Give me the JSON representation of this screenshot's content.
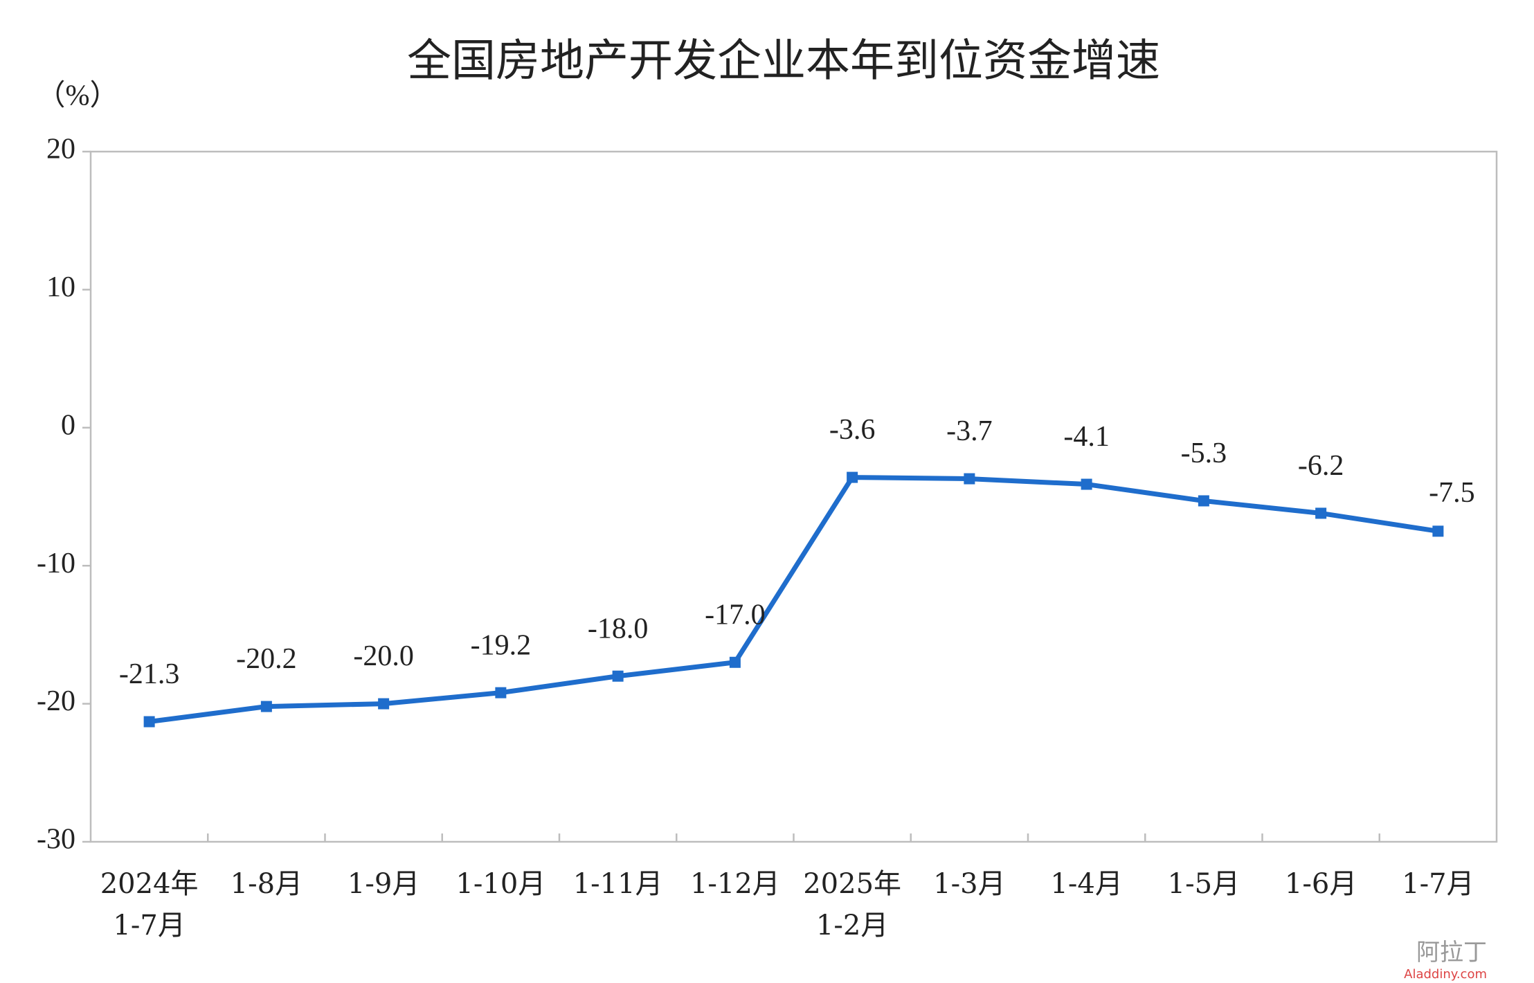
{
  "chart_data": {
    "type": "line",
    "title": "全国房地产开发企业本年到位资金增速",
    "y_label": "（%）",
    "categories": [
      [
        "2024年",
        "1-7月"
      ],
      [
        "1-8月"
      ],
      [
        "1-9月"
      ],
      [
        "1-10月"
      ],
      [
        "1-11月"
      ],
      [
        "1-12月"
      ],
      [
        "2025年",
        "1-2月"
      ],
      [
        "1-3月"
      ],
      [
        "1-4月"
      ],
      [
        "1-5月"
      ],
      [
        "1-6月"
      ],
      [
        "1-7月"
      ]
    ],
    "values": [
      -21.3,
      -20.2,
      -20.0,
      -19.2,
      -18.0,
      -17.0,
      -3.6,
      -3.7,
      -4.1,
      -5.3,
      -6.2,
      -7.5
    ],
    "value_labels": [
      "-21.3",
      "-20.2",
      "-20.0",
      "-19.2",
      "-18.0",
      "-17.0",
      "-3.6",
      "-3.7",
      "-4.1",
      "-5.3",
      "-6.2",
      "-7.5"
    ],
    "color": "#1f6dcc",
    "ylim": [
      -30,
      20
    ],
    "yticks": [
      -30,
      -20,
      -10,
      0,
      10,
      20
    ],
    "grid": false,
    "watermark": {
      "text": "阿拉丁",
      "url": "Aladdiny.com"
    }
  }
}
